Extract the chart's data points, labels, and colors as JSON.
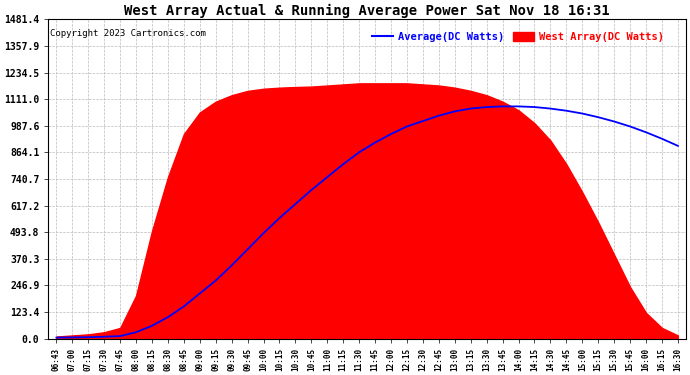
{
  "title": "West Array Actual & Running Average Power Sat Nov 18 16:31",
  "copyright": "Copyright 2023 Cartronics.com",
  "legend_avg": "Average(DC Watts)",
  "legend_west": "West Array(DC Watts)",
  "ylabel_values": [
    0.0,
    123.4,
    246.9,
    370.3,
    493.8,
    617.2,
    740.7,
    864.1,
    987.6,
    1111.0,
    1234.5,
    1357.9,
    1481.4
  ],
  "ymax": 1481.4,
  "ymin": 0.0,
  "background_color": "#ffffff",
  "plot_bg_color": "#ffffff",
  "grid_color": "#bbbbbb",
  "fill_color": "#ff0000",
  "avg_line_color": "#0000ff",
  "west_line_color": "#ff0000",
  "title_color": "#000000",
  "copyright_color": "#000000",
  "avg_legend_color": "#0000ff",
  "west_legend_color": "#ff0000",
  "x_tick_labels": [
    "06:43",
    "07:00",
    "07:15",
    "07:30",
    "07:45",
    "08:00",
    "08:15",
    "08:30",
    "08:45",
    "09:00",
    "09:15",
    "09:30",
    "09:45",
    "10:00",
    "10:15",
    "10:30",
    "10:45",
    "11:00",
    "11:15",
    "11:30",
    "11:45",
    "12:00",
    "12:15",
    "12:30",
    "12:45",
    "13:00",
    "13:15",
    "13:30",
    "13:45",
    "14:00",
    "14:15",
    "14:30",
    "14:45",
    "15:00",
    "15:15",
    "15:30",
    "15:45",
    "16:00",
    "16:15",
    "16:30"
  ],
  "west_array_raw": [
    10,
    15,
    20,
    30,
    50,
    200,
    500,
    750,
    950,
    1050,
    1100,
    1130,
    1150,
    1160,
    1165,
    1168,
    1170,
    1175,
    1180,
    1185,
    1185,
    1185,
    1185,
    1180,
    1175,
    1165,
    1150,
    1130,
    1100,
    1060,
    1000,
    920,
    810,
    680,
    540,
    390,
    240,
    120,
    50,
    15
  ],
  "avg_array_raw": [
    5,
    6,
    7,
    9,
    12,
    30,
    60,
    100,
    150,
    210,
    270,
    340,
    415,
    490,
    560,
    625,
    690,
    750,
    810,
    865,
    910,
    950,
    985,
    1010,
    1035,
    1055,
    1068,
    1075,
    1078,
    1078,
    1075,
    1068,
    1058,
    1045,
    1028,
    1008,
    985,
    958,
    928,
    895
  ],
  "title_fontsize": 10,
  "copyright_fontsize": 6.5,
  "legend_fontsize": 7.5,
  "ytick_fontsize": 7,
  "xtick_fontsize": 5.5
}
